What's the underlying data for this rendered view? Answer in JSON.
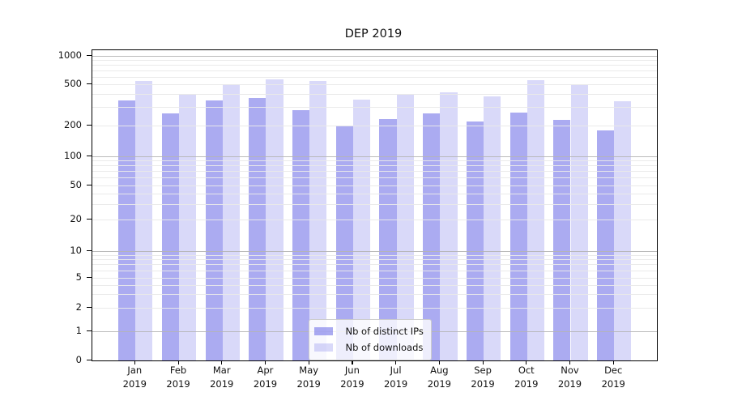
{
  "chart_data": {
    "type": "bar",
    "title": "DEP 2019",
    "categories": [
      "Jan 2019",
      "Feb 2019",
      "Mar 2019",
      "Apr 2019",
      "May 2019",
      "Jun 2019",
      "Jul 2019",
      "Aug 2019",
      "Sep 2019",
      "Oct 2019",
      "Nov 2019",
      "Dec 2019"
    ],
    "series": [
      {
        "name": "Nb of distinct IPs",
        "key": "distinct-ips",
        "color": "rgba(102,102,230,0.55)",
        "values": [
          355,
          262,
          352,
          370,
          285,
          200,
          232,
          265,
          220,
          270,
          227,
          180
        ]
      },
      {
        "name": "Nb of downloads",
        "key": "downloads",
        "color": "rgba(102,102,230,0.25)",
        "values": [
          550,
          405,
          505,
          565,
          550,
          360,
          400,
          420,
          385,
          555,
          498,
          345
        ]
      }
    ],
    "y_axis": {
      "scale": "symlog",
      "ticks": [
        {
          "label": "0",
          "value": 0
        },
        {
          "label": "1",
          "value": 1
        },
        {
          "label": "2",
          "value": 2
        },
        {
          "label": "5",
          "value": 5
        },
        {
          "label": "10",
          "value": 10
        },
        {
          "label": "20",
          "value": 20
        },
        {
          "label": "50",
          "value": 50
        },
        {
          "label": "100",
          "value": 100
        },
        {
          "label": "200",
          "value": 200
        },
        {
          "label": "500",
          "value": 500
        },
        {
          "label": "1000",
          "value": 1000
        }
      ],
      "major_grid_values": [
        1,
        10,
        100,
        1000
      ],
      "ylim": [
        0,
        1180
      ]
    },
    "legend": {
      "position": "lower center",
      "entries": [
        "Nb of distinct IPs",
        "Nb of downloads"
      ]
    },
    "grid": {
      "major": true,
      "minor": true
    }
  },
  "colors": {
    "major_grid": "#b4b4b4",
    "minor_grid": "#e9e9e9",
    "spine": "#000000",
    "text": "#111111",
    "legend_border": "#cccccc",
    "legend_bg": "rgba(255,255,255,0.8)"
  }
}
